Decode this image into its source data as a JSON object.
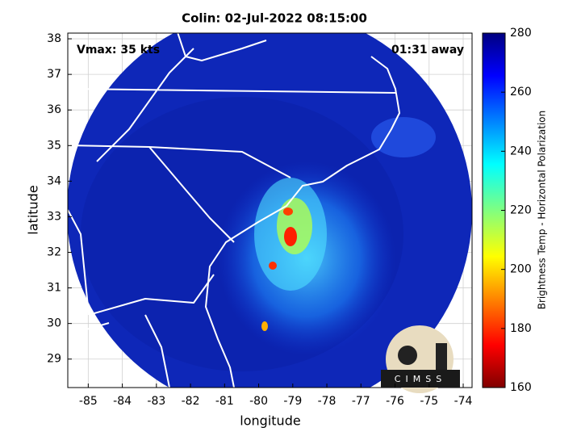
{
  "chart_data": {
    "type": "map",
    "title": "Colin: 02-Jul-2022 08:15:00",
    "x_label": "longitude",
    "y_label": "latitude",
    "annotations": [
      "Vmax: 35 kts",
      "01:31 away"
    ],
    "logo_text": "CIMSS",
    "xlim": [
      -85.6,
      -73.74
    ],
    "ylim": [
      28.2,
      38.16
    ],
    "xticks": [
      -85,
      -84,
      -83,
      -82,
      -81,
      -80,
      -79,
      -78,
      -77,
      -76,
      -75,
      -74
    ],
    "yticks": [
      29,
      30,
      31,
      32,
      33,
      34,
      35,
      36,
      37,
      38
    ],
    "grid": true,
    "colorbar": {
      "label": "Brightness Temp - Horizontal Polarization",
      "clim": [
        160,
        280
      ],
      "ticks": [
        160,
        180,
        200,
        220,
        240,
        260,
        280
      ]
    }
  }
}
